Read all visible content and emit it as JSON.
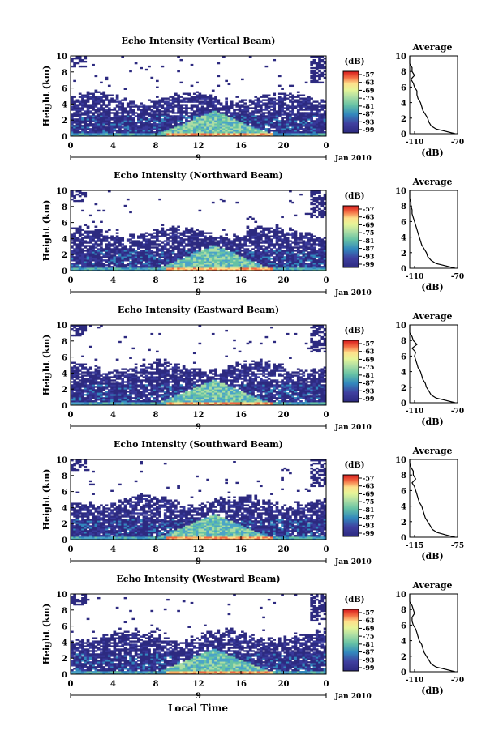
{
  "figure": {
    "xlabel": "Local Time",
    "date_label": "Jan 2010",
    "date_marker": "9",
    "colorbar_unit": "(dB)",
    "colorbar_ticks": [
      "-57",
      "-63",
      "-69",
      "-75",
      "-81",
      "-87",
      "-93",
      "-99"
    ],
    "colors": {
      "scale": [
        "#d7191c",
        "#f46d43",
        "#fdae61",
        "#fee08b",
        "#e6f598",
        "#abdda4",
        "#66c2a5",
        "#3288bd",
        "#5e4fa2",
        "#2d2a80"
      ]
    }
  },
  "chart_data": [
    {
      "type": "heatmap",
      "title": "Echo Intensity (Vertical Beam)",
      "ylabel": "Height (km)",
      "xlim": [
        0,
        24
      ],
      "ylim": [
        0,
        10
      ],
      "xticks": [
        "0",
        "4",
        "8",
        "12",
        "16",
        "20",
        "0"
      ],
      "yticks": [
        "0",
        "2",
        "4",
        "6",
        "8",
        "10"
      ],
      "avg": {
        "title": "Average",
        "xlabel": "(dB)",
        "xlim": [
          -110,
          -70
        ],
        "xticks": [
          "-110",
          "-70"
        ],
        "yticks": [
          "0",
          "2",
          "4",
          "6",
          "8",
          "10"
        ],
        "height": [
          0,
          0.3,
          0.6,
          1.0,
          1.5,
          2.0,
          2.5,
          3.0,
          3.5,
          4.0,
          4.5,
          5.0,
          5.5,
          6.0,
          6.5,
          7.0,
          7.5,
          8.0,
          8.5,
          9.0,
          9.5,
          10.0
        ],
        "value": [
          -72,
          -80,
          -88,
          -92,
          -94,
          -95,
          -97,
          -99,
          -100,
          -101,
          -103,
          -104,
          -104,
          -106,
          -107,
          -109,
          -106,
          -108,
          -108,
          -110,
          -110,
          -110
        ]
      }
    },
    {
      "type": "heatmap",
      "title": "Echo Intensity (Northward Beam)",
      "ylabel": "Height (km)",
      "xlim": [
        0,
        24
      ],
      "ylim": [
        0,
        10
      ],
      "xticks": [
        "0",
        "4",
        "8",
        "12",
        "16",
        "20",
        "0"
      ],
      "yticks": [
        "0",
        "2",
        "4",
        "6",
        "8",
        "10"
      ],
      "avg": {
        "title": "Average",
        "xlabel": "(dB)",
        "xlim": [
          -110,
          -70
        ],
        "xticks": [
          "-110",
          "-70"
        ],
        "yticks": [
          "0",
          "2",
          "4",
          "6",
          "8",
          "10"
        ],
        "height": [
          0,
          0.3,
          0.6,
          1.0,
          1.5,
          2.0,
          2.5,
          3.0,
          3.5,
          4.0,
          4.5,
          5.0,
          5.5,
          6.0,
          6.5,
          7.0,
          7.5,
          8.0,
          8.5,
          9.0,
          9.5,
          10.0
        ],
        "value": [
          -72,
          -80,
          -88,
          -92,
          -95,
          -96,
          -98,
          -100,
          -101,
          -102,
          -103,
          -104,
          -105,
          -106,
          -107,
          -108,
          -108,
          -109,
          -109,
          -110,
          -110,
          -110
        ]
      }
    },
    {
      "type": "heatmap",
      "title": "Echo Intensity (Eastward Beam)",
      "ylabel": "Height (km)",
      "xlim": [
        0,
        24
      ],
      "ylim": [
        0,
        10
      ],
      "xticks": [
        "0",
        "4",
        "8",
        "12",
        "16",
        "20",
        "0"
      ],
      "yticks": [
        "0",
        "2",
        "4",
        "6",
        "8",
        "10"
      ],
      "avg": {
        "title": "Average",
        "xlabel": "(dB)",
        "xlim": [
          -110,
          -70
        ],
        "xticks": [
          "-110",
          "-70"
        ],
        "yticks": [
          "0",
          "2",
          "4",
          "6",
          "8",
          "10"
        ],
        "height": [
          0,
          0.3,
          0.6,
          1.0,
          1.5,
          2.0,
          2.5,
          3.0,
          3.5,
          4.0,
          4.5,
          5.0,
          5.5,
          6.0,
          6.5,
          7.0,
          7.5,
          8.0,
          8.5,
          9.0,
          9.5,
          10.0
        ],
        "value": [
          -72,
          -80,
          -88,
          -92,
          -94,
          -96,
          -97,
          -99,
          -100,
          -101,
          -103,
          -104,
          -105,
          -106,
          -105,
          -108,
          -104,
          -107,
          -108,
          -110,
          -110,
          -110
        ]
      }
    },
    {
      "type": "heatmap",
      "title": "Echo Intensity (Southward Beam)",
      "ylabel": "Height (km)",
      "xlim": [
        0,
        24
      ],
      "ylim": [
        0,
        10
      ],
      "xticks": [
        "0",
        "4",
        "8",
        "12",
        "16",
        "20",
        "0"
      ],
      "yticks": [
        "0",
        "2",
        "4",
        "6",
        "8",
        "10"
      ],
      "avg": {
        "title": "Average",
        "xlabel": "(dB)",
        "xlim": [
          -115,
          -75
        ],
        "xticks": [
          "-115",
          "-75"
        ],
        "yticks": [
          "0",
          "2",
          "4",
          "6",
          "8",
          "10"
        ],
        "height": [
          0,
          0.3,
          0.6,
          1.0,
          1.5,
          2.0,
          2.5,
          3.0,
          3.5,
          4.0,
          4.5,
          5.0,
          5.5,
          6.0,
          6.5,
          7.0,
          7.5,
          8.0,
          8.5,
          9.0,
          9.5,
          10.0
        ],
        "value": [
          -77,
          -85,
          -92,
          -96,
          -98,
          -100,
          -102,
          -103,
          -104,
          -105,
          -107,
          -108,
          -109,
          -110,
          -111,
          -113,
          -110,
          -112,
          -112,
          -114,
          -115,
          -115
        ]
      }
    },
    {
      "type": "heatmap",
      "title": "Echo Intensity (Westward Beam)",
      "ylabel": "Height (km)",
      "xlim": [
        0,
        24
      ],
      "ylim": [
        0,
        10
      ],
      "xticks": [
        "0",
        "4",
        "8",
        "12",
        "16",
        "20",
        "0"
      ],
      "yticks": [
        "0",
        "2",
        "4",
        "6",
        "8",
        "10"
      ],
      "avg": {
        "title": "Average",
        "xlabel": "(dB)",
        "xlim": [
          -110,
          -70
        ],
        "xticks": [
          "-110",
          "-70"
        ],
        "yticks": [
          "0",
          "2",
          "4",
          "6",
          "8",
          "10"
        ],
        "height": [
          0,
          0.3,
          0.6,
          1.0,
          1.5,
          2.0,
          2.5,
          3.0,
          3.5,
          4.0,
          4.5,
          5.0,
          5.5,
          6.0,
          6.5,
          7.0,
          7.5,
          8.0,
          8.5,
          9.0,
          9.5,
          10.0
        ],
        "value": [
          -72,
          -80,
          -88,
          -92,
          -94,
          -96,
          -98,
          -99,
          -100,
          -102,
          -103,
          -104,
          -105,
          -107,
          -108,
          -108,
          -106,
          -107,
          -108,
          -110,
          -110,
          -110
        ]
      }
    }
  ]
}
